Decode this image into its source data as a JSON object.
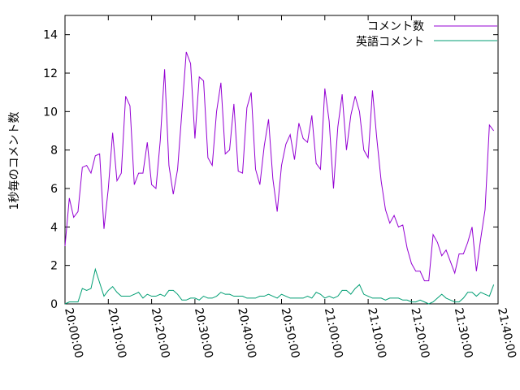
{
  "chart_data": {
    "type": "line",
    "title": "",
    "xlabel": "",
    "ylabel": "1秒毎のコメント数",
    "xlim": [
      "20:00:00",
      "21:40:00"
    ],
    "ylim": [
      0,
      15
    ],
    "x_ticks": [
      "20:00:00",
      "20:10:00",
      "20:20:00",
      "20:30:00",
      "20:40:00",
      "20:50:00",
      "21:00:00",
      "21:10:00",
      "21:20:00",
      "21:30:00",
      "21:40:00"
    ],
    "y_ticks": [
      "0",
      "2",
      "4",
      "6",
      "8",
      "10",
      "12",
      "14"
    ],
    "x_tick_minutes": [
      0,
      10,
      20,
      30,
      40,
      50,
      60,
      70,
      80,
      90,
      100
    ],
    "y_tick_values": [
      0,
      2,
      4,
      6,
      8,
      10,
      12,
      14
    ],
    "grid": false,
    "legend": "top-right",
    "x_interval_minutes": 1,
    "series": [
      {
        "name": "コメント数",
        "color": "#9400d3",
        "values": [
          3.0,
          5.5,
          4.5,
          4.8,
          7.1,
          7.2,
          6.8,
          7.7,
          7.8,
          3.9,
          6.0,
          8.9,
          6.4,
          6.8,
          10.8,
          10.3,
          6.2,
          6.8,
          6.8,
          8.4,
          6.2,
          6.0,
          8.5,
          12.2,
          7.2,
          5.7,
          7.0,
          10.0,
          13.1,
          12.5,
          8.6,
          11.8,
          11.6,
          7.6,
          7.2,
          10.0,
          11.5,
          7.8,
          8.0,
          10.4,
          6.9,
          6.8,
          10.2,
          11.0,
          7.0,
          6.2,
          8.2,
          9.6,
          6.5,
          4.8,
          7.2,
          8.3,
          8.8,
          7.5,
          9.4,
          8.6,
          8.4,
          9.8,
          7.3,
          7.0,
          11.2,
          9.5,
          6.0,
          9.2,
          10.9,
          8.0,
          9.8,
          10.8,
          10.0,
          8.0,
          7.6,
          11.1,
          8.6,
          6.4,
          4.9,
          4.2,
          4.6,
          4.0,
          4.1,
          2.9,
          2.1,
          1.7,
          1.7,
          1.2,
          1.2,
          3.6,
          3.2,
          2.5,
          2.8,
          2.2,
          1.6,
          2.6,
          2.6,
          3.2,
          4.0,
          1.7,
          3.4,
          4.9,
          9.3,
          9.0
        ]
      },
      {
        "name": "英語コメント",
        "color": "#009e73",
        "values": [
          0.0,
          0.1,
          0.1,
          0.1,
          0.8,
          0.7,
          0.8,
          1.8,
          1.1,
          0.4,
          0.7,
          0.9,
          0.6,
          0.4,
          0.4,
          0.4,
          0.5,
          0.6,
          0.3,
          0.5,
          0.4,
          0.4,
          0.5,
          0.4,
          0.7,
          0.7,
          0.5,
          0.2,
          0.2,
          0.3,
          0.3,
          0.2,
          0.4,
          0.3,
          0.3,
          0.4,
          0.6,
          0.5,
          0.5,
          0.4,
          0.4,
          0.4,
          0.3,
          0.3,
          0.3,
          0.4,
          0.4,
          0.5,
          0.4,
          0.3,
          0.5,
          0.4,
          0.3,
          0.3,
          0.3,
          0.3,
          0.4,
          0.3,
          0.6,
          0.5,
          0.3,
          0.4,
          0.3,
          0.4,
          0.7,
          0.7,
          0.5,
          0.8,
          1.0,
          0.5,
          0.4,
          0.3,
          0.3,
          0.3,
          0.2,
          0.3,
          0.3,
          0.3,
          0.2,
          0.2,
          0.1,
          0.1,
          0.2,
          0.1,
          0.0,
          0.1,
          0.3,
          0.5,
          0.3,
          0.2,
          0.1,
          0.1,
          0.3,
          0.6,
          0.6,
          0.4,
          0.6,
          0.5,
          0.4,
          1.0
        ]
      }
    ]
  }
}
